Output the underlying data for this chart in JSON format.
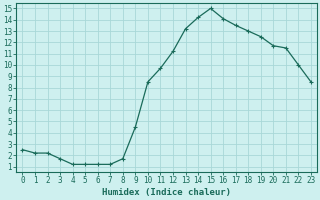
{
  "x": [
    0,
    1,
    2,
    3,
    4,
    5,
    6,
    7,
    8,
    9,
    10,
    11,
    12,
    13,
    14,
    15,
    16,
    17,
    18,
    19,
    20,
    21,
    22,
    23
  ],
  "y": [
    2.5,
    2.2,
    2.2,
    1.7,
    1.2,
    1.2,
    1.2,
    1.2,
    1.7,
    4.5,
    8.5,
    9.7,
    11.2,
    13.2,
    14.2,
    15.0,
    14.1,
    13.5,
    13.0,
    12.5,
    11.7,
    11.5,
    10.0,
    8.5
  ],
  "line_color": "#1a6b5a",
  "marker": "+",
  "marker_size": 3,
  "marker_lw": 0.8,
  "line_width": 0.9,
  "bg_color": "#cef0ef",
  "grid_color": "#a8d8d8",
  "xlabel": "Humidex (Indice chaleur)",
  "xlim": [
    -0.5,
    23.5
  ],
  "ylim": [
    0.5,
    15.5
  ],
  "xtick_labels": [
    "0",
    "1",
    "2",
    "3",
    "4",
    "5",
    "6",
    "7",
    "8",
    "9",
    "10",
    "11",
    "12",
    "13",
    "14",
    "15",
    "16",
    "17",
    "18",
    "19",
    "20",
    "21",
    "22",
    "23"
  ],
  "ytick_vals": [
    1,
    2,
    3,
    4,
    5,
    6,
    7,
    8,
    9,
    10,
    11,
    12,
    13,
    14,
    15
  ],
  "tick_color": "#1a6b5a",
  "tick_fontsize": 5.5,
  "xlabel_fontsize": 6.5
}
